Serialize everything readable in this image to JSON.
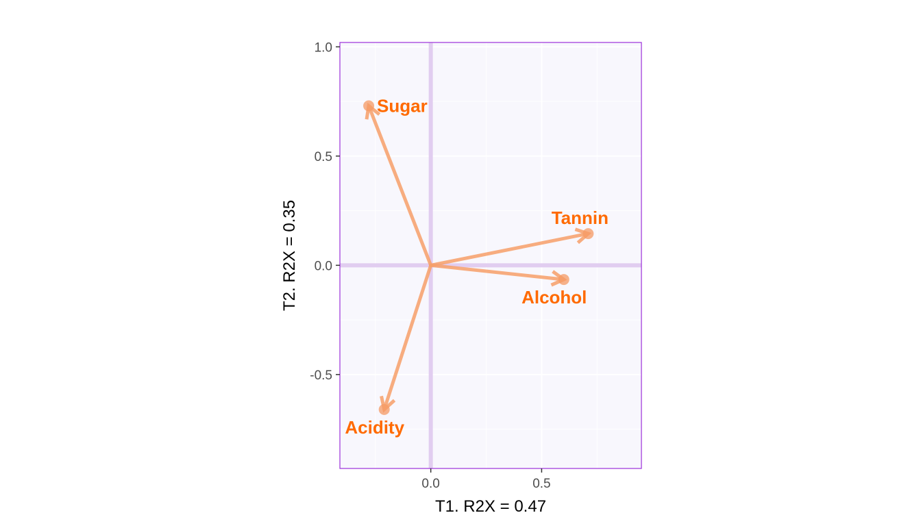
{
  "chart_data": {
    "type": "biplot",
    "xlabel": "T1. R2X = 0.47",
    "ylabel": "T2. R2X = 0.35",
    "xlim": [
      -0.41,
      0.95
    ],
    "ylim": [
      -0.93,
      1.02
    ],
    "x_ticks": [
      {
        "value": 0.0,
        "label": "0.0"
      },
      {
        "value": 0.5,
        "label": "0.5"
      }
    ],
    "y_ticks": [
      {
        "value": 1.0,
        "label": "1.0"
      },
      {
        "value": 0.5,
        "label": "0.5"
      },
      {
        "value": 0.0,
        "label": "0.0"
      },
      {
        "value": -0.5,
        "label": "-0.5"
      }
    ],
    "minor_x": [
      -0.25,
      0.25,
      0.75
    ],
    "minor_y": [
      0.75,
      0.25,
      -0.25,
      -0.75
    ],
    "grid": true,
    "origin_lines": true,
    "loadings": [
      {
        "name": "Sugar",
        "x": -0.28,
        "y": 0.73
      },
      {
        "name": "Tannin",
        "x": 0.71,
        "y": 0.145
      },
      {
        "name": "Alcohol",
        "x": 0.6,
        "y": -0.065
      },
      {
        "name": "Acidity",
        "x": -0.21,
        "y": -0.66
      }
    ],
    "label_anchor": {
      "Sugar": "right",
      "Tannin": "above",
      "Alcohol": "below",
      "Acidity": "below"
    },
    "colors": {
      "arrow": "#f7a06a",
      "label": "#ff6a00",
      "panel_bg": "#f8f7fd",
      "panel_border": "#9b30d9",
      "origin_line": "#e1cdf0",
      "grid": "#ffffff"
    }
  }
}
